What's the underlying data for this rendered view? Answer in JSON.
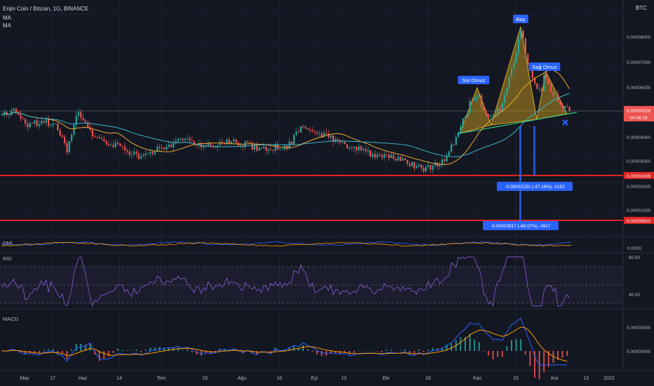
{
  "header": {
    "symbol_line": "Enjin Coin / Bitcoin, 1G, BINANCE",
    "indicators": [
      "MA",
      "MA"
    ],
    "currency": "BTC"
  },
  "colors": {
    "background": "#131722",
    "grid": "#1e222d",
    "candle_up": "#26a69a",
    "candle_down": "#ef5350",
    "ma_fast": "#f0a830",
    "ma_slow": "#3bb4c8",
    "pattern_fill": "#b8901e",
    "support_line": "#e02424",
    "rsi_line": "#7e57c2",
    "macd_line": "#2962ff",
    "signal_line": "#ff9800",
    "price_label": "#ef5350"
  },
  "chart_data": [
    {
      "type": "candlestick",
      "title": "Enjin Coin / Bitcoin, 1G, BINANCE",
      "y_scale_ticks": [
        "0.00008000",
        "0.00007000",
        "0.00006000",
        "0.00004000",
        "0.00003000",
        "0.00002000",
        "0.00001000"
      ],
      "last_price": "0.00005026",
      "countdown": "04:06:29",
      "support_levels": [
        {
          "value_label": "0.00002409"
        },
        {
          "value_label": "0.00000610"
        }
      ],
      "pattern_labels": [
        "Sol Omuz",
        "Baş",
        "Sağ Omuz"
      ],
      "measurements": [
        "-0.00002152 (-47.18%) -2152",
        "-0.00003917 (-86.57%) -3917"
      ],
      "x_tick_labels": [
        "May",
        "17",
        "Haz",
        "14",
        "Tem",
        "19",
        "Ağu",
        "16",
        "Eyl",
        "13",
        "Eki",
        "18",
        "Kas",
        "15",
        "Ara",
        "13",
        "2022"
      ]
    },
    {
      "type": "line",
      "title": "DMI",
      "y_scale_ticks": [
        "0.0000"
      ]
    },
    {
      "type": "line",
      "title": "RSI",
      "y_scale_ticks": [
        "80.00",
        "40.00"
      ]
    },
    {
      "type": "line",
      "title": "MACD",
      "y_scale_ticks": [
        "0.00000500",
        "0.00000000"
      ]
    }
  ]
}
